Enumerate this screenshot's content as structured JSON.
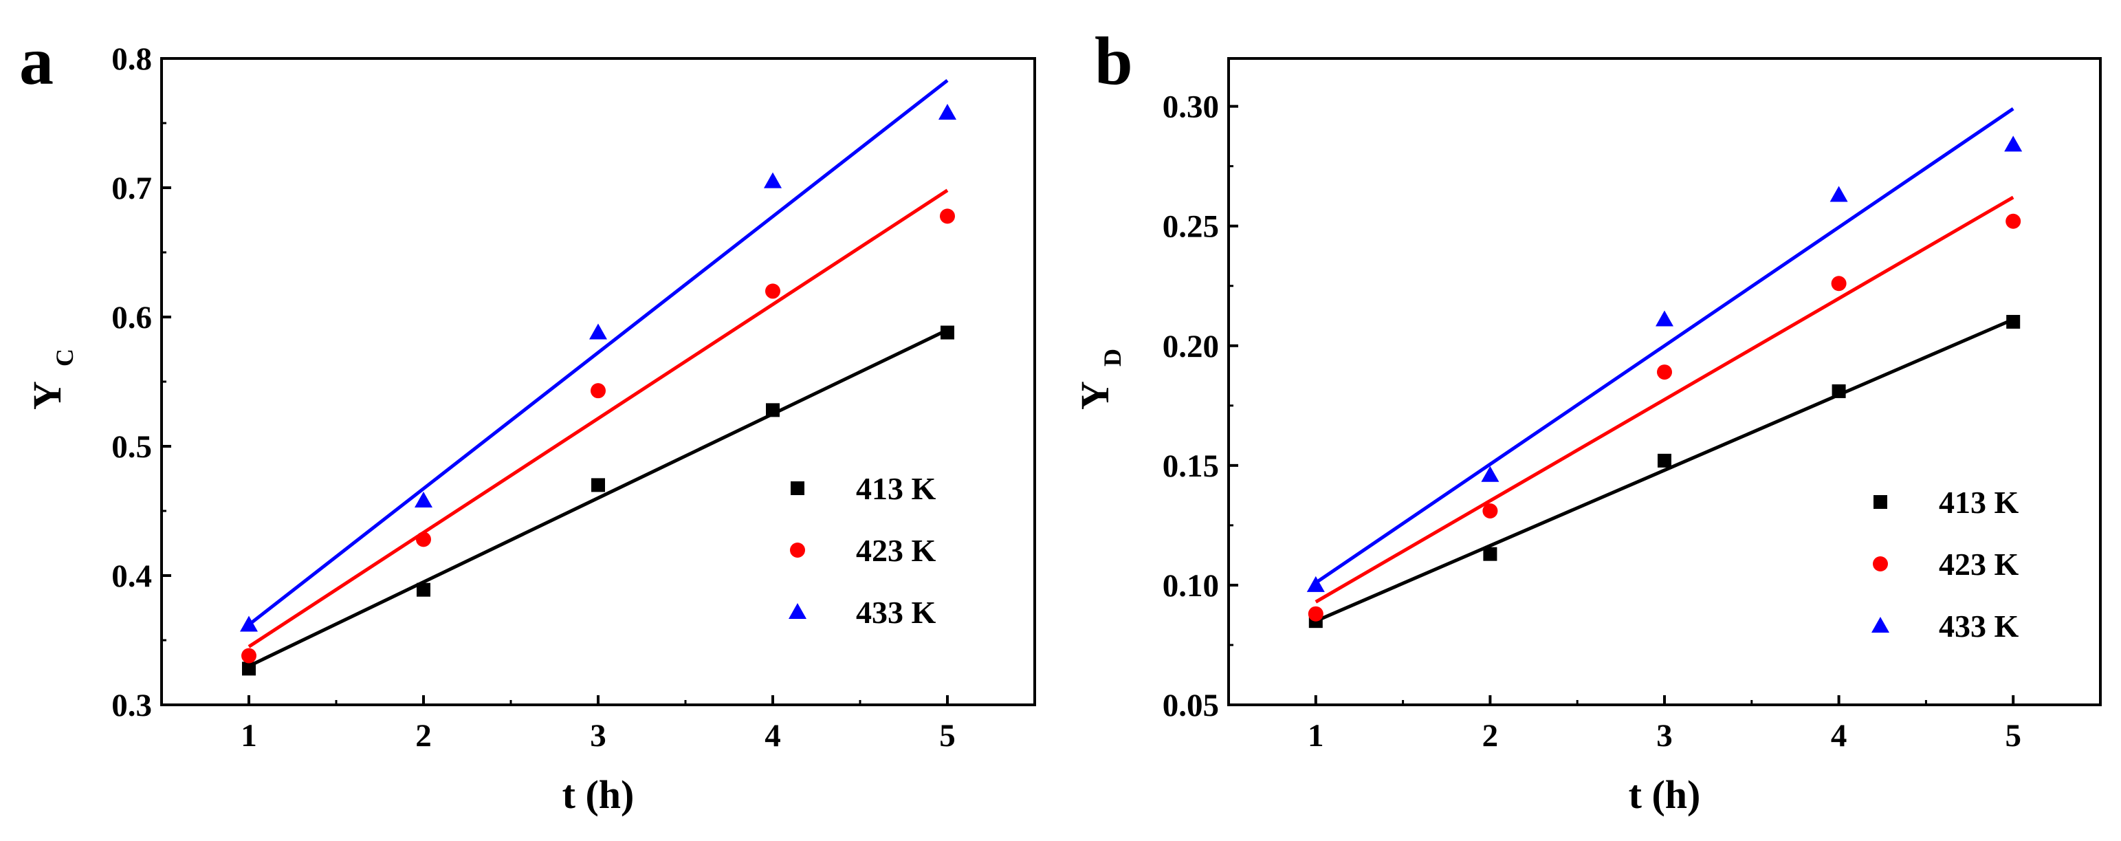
{
  "figure": {
    "colors": {
      "413 K": "#000000",
      "423 K": "#ff0000",
      "433 K": "#0000ff"
    }
  },
  "chart_data": [
    {
      "type": "scatter",
      "panel": "a",
      "xlabel": "t (h)",
      "ylabel_main": "Y",
      "ylabel_sub": "C",
      "xlim": [
        0.5,
        5.5
      ],
      "ylim": [
        0.3,
        0.8
      ],
      "xticks": [
        1,
        2,
        3,
        4,
        5
      ],
      "xtick_labels": [
        "1",
        "2",
        "3",
        "4",
        "5"
      ],
      "yticks": [
        0.3,
        0.4,
        0.5,
        0.6,
        0.7,
        0.8
      ],
      "ytick_labels": [
        "0.3",
        "0.4",
        "0.5",
        "0.6",
        "0.7",
        "0.8"
      ],
      "legend_position": "bottom-right",
      "series": [
        {
          "name": "413 K",
          "marker": "square",
          "color": "#000000",
          "x": [
            1,
            2,
            3,
            4,
            5
          ],
          "y": [
            0.328,
            0.389,
            0.47,
            0.528,
            0.588
          ],
          "fit": {
            "x": [
              1,
              5
            ],
            "y": [
              0.33,
              0.59
            ]
          }
        },
        {
          "name": "423 K",
          "marker": "circle",
          "color": "#ff0000",
          "x": [
            1,
            2,
            3,
            4,
            5
          ],
          "y": [
            0.338,
            0.428,
            0.543,
            0.62,
            0.678
          ],
          "fit": {
            "x": [
              1,
              5
            ],
            "y": [
              0.345,
              0.698
            ]
          }
        },
        {
          "name": "433 K",
          "marker": "triangle",
          "color": "#0000ff",
          "x": [
            1,
            2,
            3,
            4,
            5
          ],
          "y": [
            0.362,
            0.458,
            0.588,
            0.705,
            0.758
          ],
          "fit": {
            "x": [
              1,
              5
            ],
            "y": [
              0.362,
              0.783
            ]
          }
        }
      ]
    },
    {
      "type": "scatter",
      "panel": "b",
      "xlabel": "t (h)",
      "ylabel_main": "Y",
      "ylabel_sub": "D",
      "xlim": [
        0.5,
        5.5
      ],
      "ylim": [
        0.05,
        0.32
      ],
      "xticks": [
        1,
        2,
        3,
        4,
        5
      ],
      "xtick_labels": [
        "1",
        "2",
        "3",
        "4",
        "5"
      ],
      "yticks": [
        0.05,
        0.1,
        0.15,
        0.2,
        0.25,
        0.3
      ],
      "ytick_labels": [
        "0.05",
        "0.10",
        "0.15",
        "0.20",
        "0.25",
        "0.30"
      ],
      "legend_position": "bottom-right",
      "series": [
        {
          "name": "413 K",
          "marker": "square",
          "color": "#000000",
          "x": [
            1,
            2,
            3,
            4,
            5
          ],
          "y": [
            0.085,
            0.113,
            0.152,
            0.181,
            0.21
          ],
          "fit": {
            "x": [
              1,
              5
            ],
            "y": [
              0.085,
              0.211
            ]
          }
        },
        {
          "name": "423 K",
          "marker": "circle",
          "color": "#ff0000",
          "x": [
            1,
            2,
            3,
            4,
            5
          ],
          "y": [
            0.088,
            0.131,
            0.189,
            0.226,
            0.252
          ],
          "fit": {
            "x": [
              1,
              5
            ],
            "y": [
              0.093,
              0.262
            ]
          }
        },
        {
          "name": "433 K",
          "marker": "triangle",
          "color": "#0000ff",
          "x": [
            1,
            2,
            3,
            4,
            5
          ],
          "y": [
            0.1,
            0.146,
            0.211,
            0.263,
            0.284
          ],
          "fit": {
            "x": [
              1,
              5
            ],
            "y": [
              0.101,
              0.299
            ]
          }
        }
      ]
    }
  ]
}
